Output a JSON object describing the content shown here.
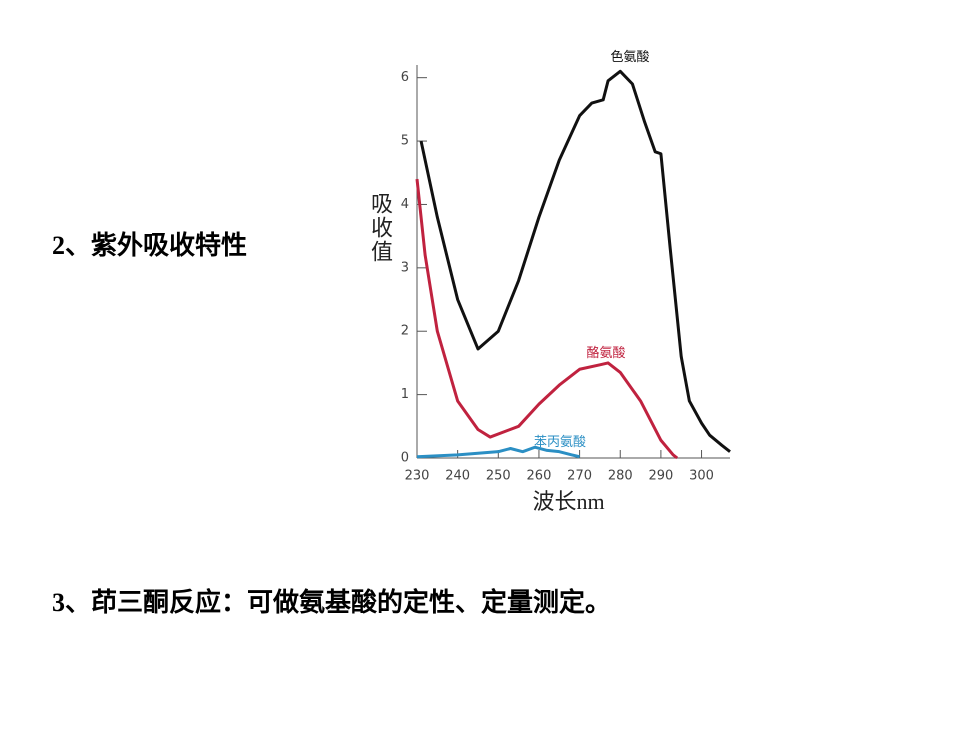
{
  "heading_1": "2、紫外吸收特性",
  "heading_2": "3、茚三酮反应：可做氨基酸的定性、定量测定。",
  "chart_data": {
    "type": "line",
    "x_label": "波长nm",
    "y_label": "吸收值",
    "xlim": [
      230,
      307
    ],
    "ylim": [
      0,
      6.2
    ],
    "xticks": [
      230,
      240,
      250,
      260,
      270,
      280,
      290,
      300
    ],
    "yticks": [
      0,
      1,
      2,
      3,
      4,
      5,
      6
    ],
    "series": [
      {
        "name": "色氨酸",
        "color": "#111111",
        "x": [
          231,
          235,
          240,
          245,
          250,
          255,
          260,
          265,
          270,
          273,
          275.8,
          277,
          280,
          283,
          286,
          288.6,
          290,
          292.3,
          295,
          297,
          300,
          302,
          305,
          307
        ],
        "values": [
          5.0,
          3.8,
          2.5,
          1.72,
          2.0,
          2.8,
          3.8,
          4.7,
          5.4,
          5.6,
          5.65,
          5.95,
          6.1,
          5.9,
          5.3,
          4.83,
          4.8,
          3.3,
          1.6,
          0.9,
          0.55,
          0.36,
          0.2,
          0.1
        ]
      },
      {
        "name": "酪氨酸",
        "color": "#c0223f",
        "x": [
          230,
          232,
          235,
          240,
          245,
          248,
          255,
          260,
          265,
          270,
          275,
          277,
          280,
          285,
          290,
          293,
          294
        ],
        "values": [
          4.4,
          3.2,
          2.0,
          0.9,
          0.45,
          0.33,
          0.5,
          0.85,
          1.15,
          1.4,
          1.47,
          1.5,
          1.35,
          0.9,
          0.28,
          0.05,
          0
        ]
      },
      {
        "name": "苯丙氨酸",
        "color": "#2b8fc4",
        "x": [
          230,
          240,
          250,
          253,
          256,
          259,
          262,
          265,
          268,
          270
        ],
        "values": [
          0.02,
          0.05,
          0.1,
          0.15,
          0.1,
          0.17,
          0.12,
          0.1,
          0.05,
          0.02
        ]
      }
    ]
  }
}
